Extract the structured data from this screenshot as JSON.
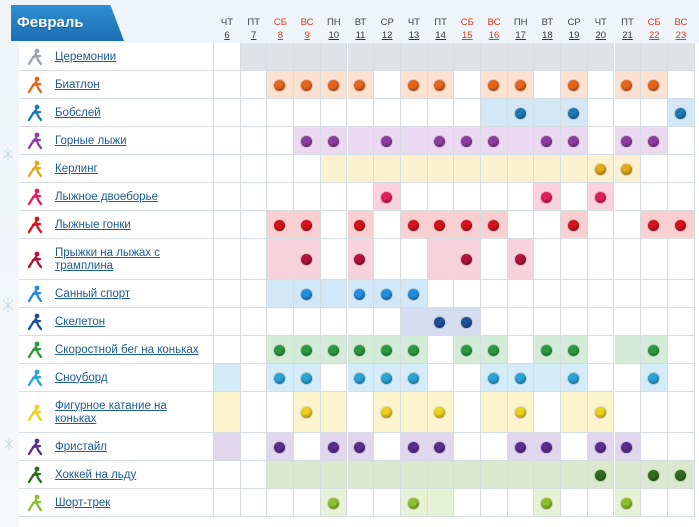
{
  "month": "Февраль",
  "colors": {
    "header_bg": "#1c6eb2",
    "weekend_text": "#d43a2a",
    "link_text": "#1d5c8e",
    "grid_line": "#d6dde2"
  },
  "days": [
    {
      "name": "ЧТ",
      "num": "6",
      "weekend": false
    },
    {
      "name": "ПТ",
      "num": "7",
      "weekend": false
    },
    {
      "name": "СБ",
      "num": "8",
      "weekend": true
    },
    {
      "name": "ВС",
      "num": "9",
      "weekend": true
    },
    {
      "name": "ПН",
      "num": "10",
      "weekend": false
    },
    {
      "name": "ВТ",
      "num": "11",
      "weekend": false
    },
    {
      "name": "СР",
      "num": "12",
      "weekend": false
    },
    {
      "name": "ЧТ",
      "num": "13",
      "weekend": false
    },
    {
      "name": "ПТ",
      "num": "14",
      "weekend": false
    },
    {
      "name": "СБ",
      "num": "15",
      "weekend": true
    },
    {
      "name": "ВС",
      "num": "16",
      "weekend": true
    },
    {
      "name": "ПН",
      "num": "17",
      "weekend": false
    },
    {
      "name": "ВТ",
      "num": "18",
      "weekend": false
    },
    {
      "name": "СР",
      "num": "19",
      "weekend": false
    },
    {
      "name": "ЧТ",
      "num": "20",
      "weekend": false
    },
    {
      "name": "ПТ",
      "num": "21",
      "weekend": false
    },
    {
      "name": "СБ",
      "num": "22",
      "weekend": true
    },
    {
      "name": "ВС",
      "num": "23",
      "weekend": true
    }
  ],
  "sports": [
    {
      "name": "Церемонии",
      "icon": "ceremony-icon",
      "color": "#9aa6ae",
      "tint": "#dfe3e6",
      "lines": 1,
      "tinted": [
        1,
        2,
        3,
        4,
        5,
        6,
        7,
        8,
        9,
        10,
        11,
        12,
        13,
        14,
        15,
        16,
        17
      ],
      "dots": []
    },
    {
      "name": "Биатлон",
      "icon": "biathlon-icon",
      "color": "#e8661c",
      "tint": "#fbe1cf",
      "lines": 1,
      "tinted": [
        2,
        3,
        4,
        5,
        7,
        8,
        10,
        11,
        13,
        15,
        16
      ],
      "dots": [
        2,
        3,
        4,
        5,
        7,
        8,
        10,
        11,
        13,
        15,
        16
      ]
    },
    {
      "name": "Бобслей",
      "icon": "bobsleigh-icon",
      "color": "#1e7ab5",
      "tint": "#d3e7f4",
      "lines": 1,
      "tinted": [
        10,
        11,
        12,
        13,
        17
      ],
      "dots": [
        11,
        13,
        17
      ]
    },
    {
      "name": "Горные лыжи",
      "icon": "alpine-skiing-icon",
      "color": "#8b3f9e",
      "tint": "#ead9f0",
      "lines": 1,
      "tinted": [
        3,
        4,
        5,
        6,
        7,
        8,
        9,
        10,
        11,
        12,
        13,
        15,
        16
      ],
      "dots": [
        3,
        4,
        6,
        8,
        9,
        10,
        12,
        13,
        15,
        16
      ]
    },
    {
      "name": "Керлинг",
      "icon": "curling-icon",
      "color": "#e3a916",
      "tint": "#fbf0cf",
      "lines": 1,
      "tinted": [
        4,
        5,
        6,
        7,
        8,
        9,
        10,
        11,
        12,
        13,
        14,
        15
      ],
      "dots": [
        14,
        15
      ]
    },
    {
      "name": "Лыжное двоеборье",
      "icon": "nordic-combined-icon",
      "color": "#e01e5a",
      "tint": "#fad1dd",
      "lines": 1,
      "tinted": [
        6,
        12,
        14
      ],
      "dots": [
        6,
        12,
        14
      ]
    },
    {
      "name": "Лыжные гонки",
      "icon": "cross-country-icon",
      "color": "#d6121b",
      "tint": "#f9d0d2",
      "lines": 1,
      "tinted": [
        2,
        3,
        5,
        7,
        8,
        9,
        10,
        13,
        16,
        17
      ],
      "dots": [
        2,
        3,
        5,
        7,
        8,
        9,
        10,
        13,
        16,
        17
      ]
    },
    {
      "name": "Прыжки на лыжах с трамплина",
      "icon": "ski-jumping-icon",
      "color": "#b2143a",
      "tint": "#f6d3dc",
      "lines": 2,
      "tinted": [
        2,
        3,
        5,
        8,
        9,
        11
      ],
      "dots": [
        3,
        5,
        9,
        11
      ]
    },
    {
      "name": "Санный спорт",
      "icon": "luge-icon",
      "color": "#1f8fe0",
      "tint": "#d2e8f8",
      "lines": 1,
      "tinted": [
        2,
        3,
        4,
        5,
        6,
        7
      ],
      "dots": [
        3,
        5,
        6,
        7
      ]
    },
    {
      "name": "Скелетон",
      "icon": "skeleton-icon",
      "color": "#1f4f9c",
      "tint": "#d4def0",
      "lines": 1,
      "tinted": [
        7,
        8,
        9
      ],
      "dots": [
        8,
        9
      ]
    },
    {
      "name": "Скоростной бег на коньках",
      "icon": "speed-skating-icon",
      "color": "#2b9a3c",
      "tint": "#d4ecd7",
      "lines": 1,
      "tinted": [
        2,
        3,
        4,
        5,
        6,
        7,
        9,
        10,
        12,
        13,
        15,
        16
      ],
      "dots": [
        2,
        3,
        4,
        5,
        6,
        7,
        9,
        10,
        12,
        13,
        16
      ]
    },
    {
      "name": "Сноуборд",
      "icon": "snowboard-icon",
      "color": "#2aa3d6",
      "tint": "#d3ecf7",
      "lines": 1,
      "tinted": [
        0,
        2,
        3,
        5,
        6,
        7,
        10,
        11,
        12,
        13,
        16
      ],
      "dots": [
        2,
        3,
        5,
        6,
        7,
        10,
        11,
        13,
        16
      ]
    },
    {
      "name": "Фигурное катание на коньках",
      "icon": "figure-skating-icon",
      "color": "#ecd21a",
      "tint": "#fbf4cc",
      "lines": 2,
      "tinted": [
        0,
        3,
        4,
        6,
        7,
        8,
        10,
        11,
        13,
        14
      ],
      "dots": [
        3,
        6,
        8,
        11,
        14
      ]
    },
    {
      "name": "Фристайл",
      "icon": "freestyle-icon",
      "color": "#5a2d91",
      "tint": "#e0d6ee",
      "lines": 1,
      "tinted": [
        0,
        2,
        4,
        5,
        7,
        8,
        11,
        12,
        14,
        15
      ],
      "dots": [
        2,
        4,
        5,
        7,
        8,
        11,
        12,
        14,
        15
      ]
    },
    {
      "name": "Хоккей на льду",
      "icon": "ice-hockey-icon",
      "color": "#2f6d1c",
      "tint": "#dce7cf",
      "lines": 1,
      "tinted": [
        2,
        3,
        4,
        5,
        6,
        7,
        8,
        9,
        10,
        11,
        12,
        13,
        14,
        15,
        16,
        17
      ],
      "dots": [
        14,
        16,
        17
      ]
    },
    {
      "name": "Шорт-трек",
      "icon": "short-track-icon",
      "color": "#8cbf2e",
      "tint": "#e7f2d4",
      "lines": 1,
      "tinted": [
        4,
        7,
        8,
        12,
        15
      ],
      "dots": [
        4,
        7,
        12,
        15
      ]
    }
  ]
}
